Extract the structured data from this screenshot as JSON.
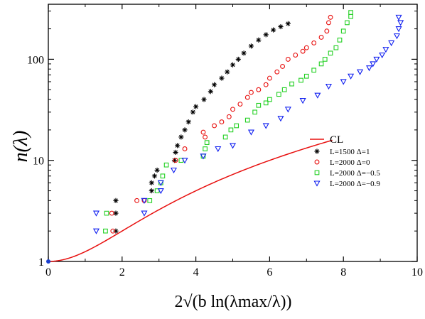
{
  "chart_data": {
    "type": "scatter",
    "xlim": [
      0,
      10
    ],
    "ylim": [
      1,
      350
    ],
    "y_scale": "log",
    "x_ticks": [
      "0",
      "2",
      "4",
      "6",
      "8",
      "10"
    ],
    "y_ticks": [
      {
        "value": 1,
        "label": "1"
      },
      {
        "value": 10,
        "label": "10"
      },
      {
        "value": 100,
        "label": "100"
      }
    ],
    "xlabel": "2√(b ln(λmax/λ))",
    "ylabel": "n(λ)",
    "legend_position": "right",
    "curve": {
      "name": "CL",
      "color": "#e8100f",
      "type": "line"
    },
    "series": [
      {
        "name": "L=1500 Δ=1",
        "marker": "asterisk",
        "color": "#000000",
        "points": [
          [
            1.83,
            2
          ],
          [
            1.83,
            3
          ],
          [
            1.83,
            4
          ],
          [
            2.8,
            5
          ],
          [
            2.8,
            6
          ],
          [
            2.88,
            7
          ],
          [
            2.95,
            8
          ],
          [
            3.42,
            10
          ],
          [
            3.45,
            12
          ],
          [
            3.5,
            14
          ],
          [
            3.6,
            17
          ],
          [
            3.7,
            20
          ],
          [
            3.8,
            24
          ],
          [
            3.92,
            30
          ],
          [
            4.0,
            34
          ],
          [
            4.22,
            40
          ],
          [
            4.4,
            48
          ],
          [
            4.5,
            56
          ],
          [
            4.7,
            65
          ],
          [
            4.85,
            75
          ],
          [
            5.0,
            88
          ],
          [
            5.15,
            100
          ],
          [
            5.3,
            115
          ],
          [
            5.5,
            135
          ],
          [
            5.7,
            155
          ],
          [
            5.9,
            175
          ],
          [
            6.1,
            195
          ],
          [
            6.3,
            210
          ],
          [
            6.5,
            225
          ]
        ]
      },
      {
        "name": "L=2000 Δ=0",
        "marker": "circle",
        "color": "#e8100f",
        "points": [
          [
            1.75,
            2
          ],
          [
            1.72,
            3
          ],
          [
            2.4,
            4
          ],
          [
            2.6,
            4
          ],
          [
            3.45,
            10
          ],
          [
            3.7,
            13
          ],
          [
            4.25,
            17
          ],
          [
            4.2,
            19
          ],
          [
            4.5,
            22
          ],
          [
            4.7,
            24
          ],
          [
            4.9,
            27
          ],
          [
            5.0,
            32
          ],
          [
            5.2,
            36
          ],
          [
            5.4,
            42
          ],
          [
            5.5,
            47
          ],
          [
            5.7,
            50
          ],
          [
            5.9,
            56
          ],
          [
            6.0,
            65
          ],
          [
            6.2,
            75
          ],
          [
            6.35,
            85
          ],
          [
            6.5,
            100
          ],
          [
            6.7,
            110
          ],
          [
            6.9,
            120
          ],
          [
            7.0,
            130
          ],
          [
            7.2,
            145
          ],
          [
            7.4,
            165
          ],
          [
            7.55,
            190
          ],
          [
            7.6,
            230
          ],
          [
            7.65,
            260
          ]
        ]
      },
      {
        "name": "L=2000 Δ=−0.5",
        "marker": "square",
        "color": "#22d022",
        "points": [
          [
            1.55,
            2
          ],
          [
            1.58,
            3
          ],
          [
            2.75,
            4
          ],
          [
            2.95,
            5
          ],
          [
            3.05,
            6
          ],
          [
            3.1,
            7
          ],
          [
            3.2,
            9
          ],
          [
            3.6,
            10
          ],
          [
            4.2,
            11
          ],
          [
            4.25,
            13
          ],
          [
            4.3,
            15
          ],
          [
            4.8,
            17
          ],
          [
            4.95,
            20
          ],
          [
            5.1,
            22
          ],
          [
            5.4,
            25
          ],
          [
            5.6,
            30
          ],
          [
            5.7,
            35
          ],
          [
            5.9,
            37
          ],
          [
            6.0,
            40
          ],
          [
            6.25,
            45
          ],
          [
            6.4,
            50
          ],
          [
            6.6,
            57
          ],
          [
            6.85,
            62
          ],
          [
            7.0,
            68
          ],
          [
            7.2,
            78
          ],
          [
            7.4,
            90
          ],
          [
            7.5,
            100
          ],
          [
            7.65,
            115
          ],
          [
            7.8,
            130
          ],
          [
            7.9,
            155
          ],
          [
            8.0,
            190
          ],
          [
            8.1,
            230
          ],
          [
            8.2,
            265
          ],
          [
            8.2,
            290
          ]
        ]
      },
      {
        "name": "L=2000 Δ=−0.9",
        "marker": "triangle-down",
        "color": "#0f1ef0",
        "points": [
          [
            1.3,
            2
          ],
          [
            1.3,
            3
          ],
          [
            2.6,
            3
          ],
          [
            2.6,
            4
          ],
          [
            3.05,
            5
          ],
          [
            3.05,
            6
          ],
          [
            3.4,
            8
          ],
          [
            3.7,
            10
          ],
          [
            4.2,
            11
          ],
          [
            4.6,
            13
          ],
          [
            5.0,
            14
          ],
          [
            5.5,
            19
          ],
          [
            5.9,
            22
          ],
          [
            6.3,
            26
          ],
          [
            6.5,
            32
          ],
          [
            6.9,
            39
          ],
          [
            7.3,
            44
          ],
          [
            7.6,
            54
          ],
          [
            8.0,
            60
          ],
          [
            8.2,
            68
          ],
          [
            8.45,
            75
          ],
          [
            8.7,
            82
          ],
          [
            8.8,
            90
          ],
          [
            8.9,
            100
          ],
          [
            9.05,
            110
          ],
          [
            9.15,
            125
          ],
          [
            9.3,
            145
          ],
          [
            9.45,
            170
          ],
          [
            9.5,
            200
          ],
          [
            9.55,
            230
          ],
          [
            9.5,
            260
          ]
        ]
      }
    ]
  }
}
